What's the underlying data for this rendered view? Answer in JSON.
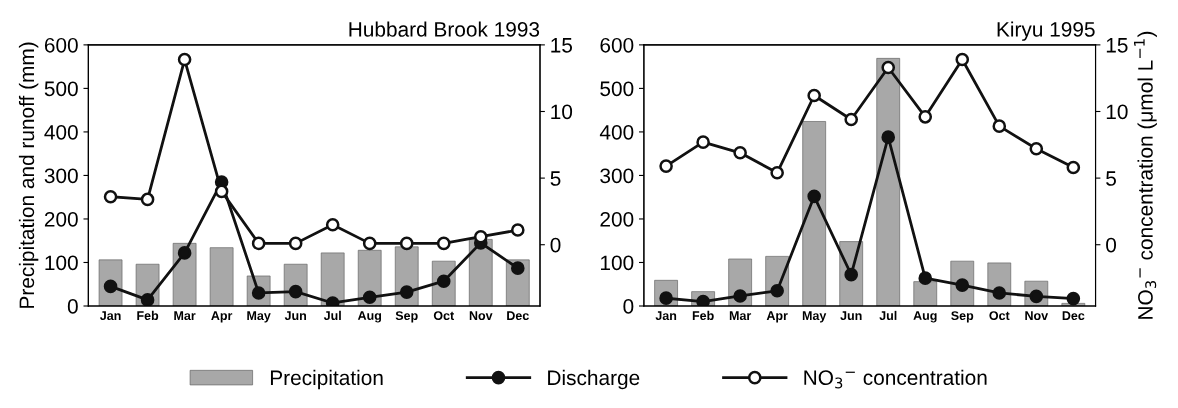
{
  "chart_data": [
    {
      "type": "bar",
      "title": "Hubbard Brook 1993",
      "ylabel": "Precipitation and runoff (mm)",
      "categories": [
        "Jan",
        "Feb",
        "Mar",
        "Apr",
        "May",
        "Jun",
        "Jul",
        "Aug",
        "Sep",
        "Oct",
        "Nov",
        "Dec"
      ],
      "series": [
        {
          "name": "Precipitation",
          "color": "#a8a8a8",
          "values": [
            106,
            96,
            144,
            134,
            69,
            96,
            122,
            128,
            136,
            103,
            153,
            106
          ]
        },
        {
          "name": "Discharge",
          "type": "line",
          "color": "#111111",
          "values": [
            45,
            14,
            122,
            285,
            30,
            33,
            7,
            20,
            32,
            57,
            145,
            87
          ]
        },
        {
          "name": "NO$_{3}$$^{−}$ concentration",
          "type": "line",
          "axis": "y2",
          "color": "#111111",
          "values": [
            3.6,
            3.4,
            13.9,
            4.0,
            0.1,
            0.1,
            1.5,
            0.1,
            0.1,
            0.1,
            0.6,
            1.1
          ]
        }
      ],
      "ylim": [
        0,
        600
      ],
      "yticks": [
        0,
        100,
        200,
        300,
        400,
        500,
        600
      ],
      "y2lim": [
        -4.6,
        15
      ],
      "y2ticks": [
        0,
        5,
        10,
        15
      ],
      "marker": "circle",
      "line_style": "solid",
      "grid": false,
      "legend": "bottom"
    },
    {
      "type": "bar",
      "title": "Kiryu 1995",
      "y2label": "NO$_{3}$$^{−}$ concentration (μmol L$^{−1}$)",
      "categories": [
        "Jan",
        "Feb",
        "Mar",
        "Apr",
        "May",
        "Jun",
        "Jul",
        "Aug",
        "Sep",
        "Oct",
        "Nov",
        "Dec"
      ],
      "series": [
        {
          "color": "#a8a8a8",
          "values": [
            59,
            33,
            108,
            114,
            424,
            148,
            569,
            56,
            103,
            99,
            57,
            6
          ]
        },
        {
          "type": "line",
          "color": "#111111",
          "values": [
            18,
            10,
            23,
            35,
            252,
            72,
            388,
            64,
            48,
            30,
            22,
            17
          ]
        },
        {
          "type": "line",
          "axis": "y2",
          "color": "#111111",
          "values": [
            5.9,
            7.7,
            6.9,
            5.4,
            11.2,
            9.4,
            13.3,
            9.6,
            13.9,
            8.9,
            7.2,
            5.8
          ]
        }
      ],
      "ylim": [
        0,
        600
      ],
      "yticks": [
        0,
        100,
        200,
        300,
        400,
        500,
        600
      ],
      "y2lim": [
        -4.6,
        15
      ],
      "y2ticks": [
        0,
        5,
        10,
        15
      ],
      "marker": "circle",
      "line_style": "solid",
      "grid": false
    }
  ]
}
